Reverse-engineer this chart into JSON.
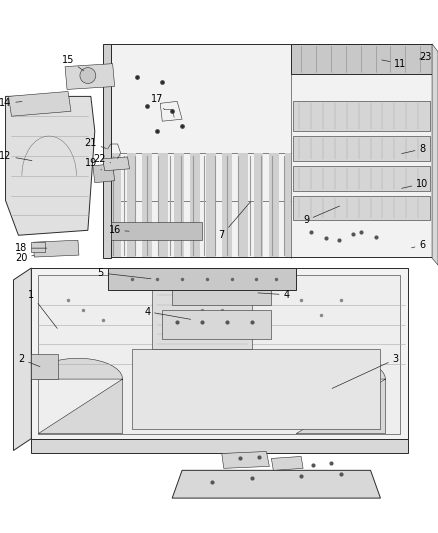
{
  "bg_color": "#ffffff",
  "line_color": "#2a2a2a",
  "label_color": "#000000",
  "fig_width": 4.38,
  "fig_height": 5.33,
  "dpi": 100,
  "label_fs": 7.0,
  "lw_main": 0.7,
  "lw_thin": 0.4,
  "gray_fill": "#e8e8e8",
  "dark_fill": "#c8c8c8",
  "light_fill": "#f2f2f2",
  "white_fill": "#ffffff"
}
